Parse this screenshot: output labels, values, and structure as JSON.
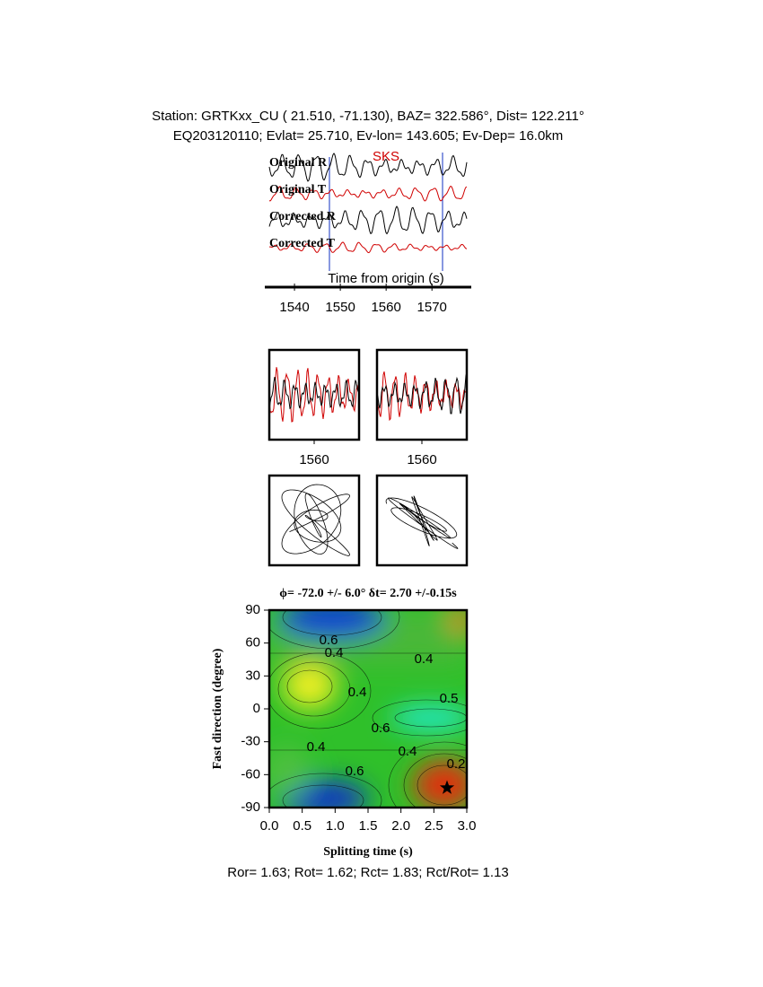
{
  "header": {
    "line1": "Station: GRTKxx_CU (  21.510,  -71.130), BAZ=  322.586°, Dist=  122.211°",
    "line2": "EQ203120110; Evlat=  25.710, Ev-lon= 143.605; Ev-Dep= 16.0km"
  },
  "traces": {
    "labels": [
      "Original R",
      "Original T",
      "Corrected R",
      "Corrected T"
    ],
    "phase": "SKS",
    "xlabel": "Time from origin (s)",
    "xlim": [
      1534.5,
      1577.6
    ],
    "xticks": [
      1540,
      1550,
      1560,
      1570
    ]
  },
  "windows": {
    "xlim": [
      1540,
      1580
    ],
    "xticks": [
      1560,
      1560
    ]
  },
  "result": {
    "title": "ϕ= -72.0 +/- 6.0° δt= 2.70 +/-0.15s",
    "xlabel": "Splitting time (s)",
    "ylabel": "Fast direction (degree)",
    "xlim": [
      0,
      3
    ],
    "ylim": [
      -90,
      90
    ],
    "xticks": [
      {
        "value": 0,
        "label": "0.0"
      },
      {
        "value": 0.5,
        "label": "0.5"
      },
      {
        "value": 1,
        "label": "1.0"
      },
      {
        "value": 1.5,
        "label": "1.5"
      },
      {
        "value": 2,
        "label": "2.0"
      },
      {
        "value": 2.5,
        "label": "2.5"
      },
      {
        "value": 3,
        "label": "3.0"
      }
    ],
    "yticks": [
      -90,
      -60,
      -30,
      0,
      30,
      60,
      90
    ],
    "contour_labels": [
      0.6,
      0.4,
      0.4,
      0.4,
      0.5,
      0.6,
      0.4,
      0.4,
      0.6,
      0.2
    ],
    "best": {
      "dt": 2.7,
      "phi": -72
    }
  },
  "footer": "Ror= 1.63; Rot= 1.62; Rct= 1.83; Rct/Rot= 1.13"
}
